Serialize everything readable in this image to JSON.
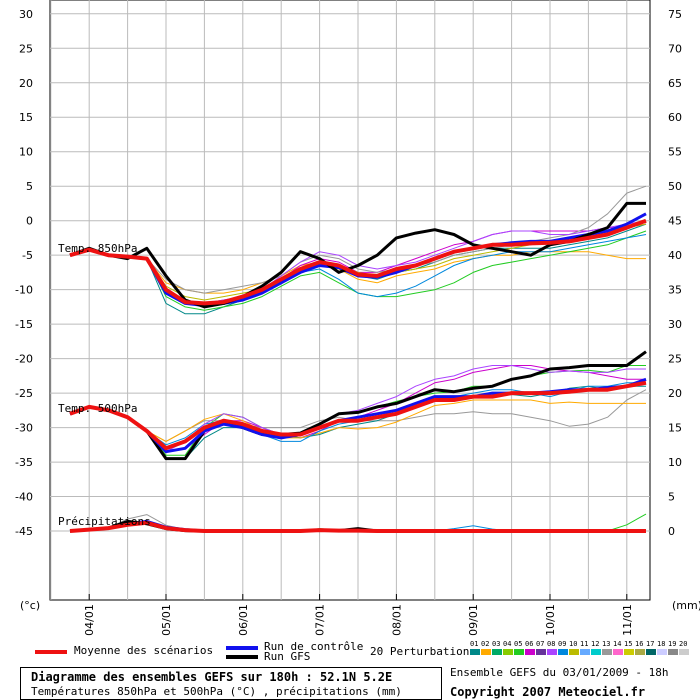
{
  "chart_data": {
    "type": "line",
    "left_axis": {
      "unit": "(°c)",
      "ticks": [
        30,
        25,
        20,
        15,
        10,
        5,
        0,
        -5,
        -10,
        -15,
        -20,
        -25,
        -30,
        -35,
        -40,
        -45
      ],
      "range": [
        -55,
        32
      ]
    },
    "right_axis": {
      "unit": "(mm)",
      "ticks": [
        75,
        70,
        65,
        60,
        55,
        50,
        45,
        40,
        35,
        30,
        25,
        20,
        15,
        10,
        5,
        0
      ]
    },
    "x_tick_labels": [
      "04/01",
      "05/01",
      "06/01",
      "07/01",
      "08/01",
      "09/01",
      "10/01",
      "11/01"
    ],
    "grid": true,
    "annotations": [
      "Temp. 850hPa",
      "Temp. 500hPa",
      "Précipitations"
    ],
    "x_hours": [
      0,
      6,
      12,
      18,
      24,
      30,
      36,
      42,
      48,
      54,
      60,
      66,
      72,
      78,
      84,
      90,
      96,
      102,
      108,
      114,
      120,
      126,
      132,
      138,
      144,
      150,
      156,
      162,
      168,
      174,
      180
    ],
    "series_styles": {
      "mean": {
        "color": "#ee1111",
        "width": 4
      },
      "control": {
        "color": "#1111ee",
        "width": 3
      },
      "gfs": {
        "color": "#000000",
        "width": 3
      }
    },
    "t850": {
      "mean": [
        -5,
        -4.2,
        -5,
        -5.2,
        -5.5,
        -10,
        -11.8,
        -12,
        -11.8,
        -11,
        -10,
        -8.5,
        -7,
        -6,
        -6.5,
        -7.8,
        -8,
        -7,
        -6.5,
        -5.5,
        -4.5,
        -4,
        -3.5,
        -3.5,
        -3.3,
        -3.2,
        -3,
        -2.5,
        -2,
        -1,
        0
      ],
      "control": [
        -5,
        -4.2,
        -5,
        -5.2,
        -5.5,
        -10.5,
        -12,
        -12.3,
        -12,
        -11.5,
        -10.5,
        -9,
        -7.5,
        -6.5,
        -6.8,
        -8,
        -8.2,
        -7.5,
        -6.5,
        -5.5,
        -4.5,
        -4,
        -3.5,
        -3.2,
        -3,
        -3,
        -2.5,
        -2,
        -1.5,
        -0.5,
        1
      ],
      "gfs": [
        -5,
        -4,
        -5,
        -5.5,
        -4,
        -8,
        -11.5,
        -12.5,
        -12,
        -11,
        -9.5,
        -7.5,
        -4.5,
        -5.5,
        -7.5,
        -6.5,
        -5,
        -2.5,
        -1.8,
        -1.3,
        -2,
        -3.5,
        -4,
        -4.5,
        -5,
        -3.5,
        -3,
        -2,
        -1,
        2.5,
        2.5
      ],
      "perturbations": [
        {
          "color": "#008888",
          "values": [
            -5,
            -4.2,
            -5,
            -5,
            -5.5,
            -12,
            -13.5,
            -13.5,
            -12.5,
            -11.5,
            -10.5,
            -9,
            -7,
            -6,
            -6.5,
            -8,
            -8.5,
            -7.5,
            -7,
            -6,
            -5,
            -4.5,
            -4,
            -4,
            -4,
            -4,
            -3.5,
            -3,
            -2.5,
            -1.5,
            -0.5
          ]
        },
        {
          "color": "#ffaa00",
          "values": [
            -5,
            -4.2,
            -5,
            -5.3,
            -5.5,
            -9,
            -10,
            -10.5,
            -10.5,
            -10,
            -9,
            -8,
            -6.5,
            -6,
            -7,
            -8.5,
            -9,
            -8,
            -7.5,
            -7,
            -6,
            -5.5,
            -5,
            -5,
            -4.5,
            -4.5,
            -4.5,
            -4.5,
            -5,
            -5.5,
            -5.5
          ]
        },
        {
          "color": "#22cc22",
          "values": [
            -5,
            -4.2,
            -5,
            -5.2,
            -5.5,
            -11,
            -12.5,
            -13,
            -12.5,
            -12,
            -11,
            -9.5,
            -8,
            -7.5,
            -9,
            -10.5,
            -11,
            -11,
            -10.5,
            -10,
            -9,
            -7.5,
            -6.5,
            -6,
            -5.5,
            -5,
            -4.5,
            -4,
            -3.5,
            -2.5,
            -1.5
          ]
        },
        {
          "color": "#cc00cc",
          "values": [
            -5,
            -4.2,
            -5,
            -5.2,
            -5.5,
            -10,
            -11.5,
            -12,
            -11.5,
            -11,
            -10,
            -8.5,
            -6.5,
            -5.5,
            -6,
            -7.5,
            -7.5,
            -6.5,
            -5.5,
            -4.5,
            -3.5,
            -3,
            -2,
            -1.5,
            -1.5,
            -1.5,
            -1.5,
            -1.5,
            -1,
            -1,
            -0.5
          ]
        },
        {
          "color": "#999999",
          "values": [
            -5,
            -4.2,
            -5,
            -5.2,
            -5.5,
            -8.5,
            -10,
            -10.5,
            -10,
            -9.5,
            -9,
            -8,
            -6,
            -5,
            -5.5,
            -7,
            -7.5,
            -7,
            -6.5,
            -6,
            -5,
            -4.5,
            -4,
            -3.5,
            -3,
            -2.5,
            -2,
            -1,
            1,
            4,
            5
          ]
        },
        {
          "color": "#0088dd",
          "values": [
            -5,
            -4.2,
            -5,
            -5.2,
            -5.5,
            -10.5,
            -12,
            -12.5,
            -12,
            -11.5,
            -10.5,
            -9,
            -7.5,
            -7,
            -8.5,
            -10.5,
            -11,
            -10.5,
            -9.5,
            -8,
            -6.5,
            -5.5,
            -5,
            -4.5,
            -4.5,
            -4.5,
            -4,
            -3.5,
            -3,
            -2.5,
            -2
          ]
        },
        {
          "color": "#bbbb00",
          "values": [
            -5,
            -4.2,
            -5,
            -5.2,
            -5.5,
            -9.5,
            -11,
            -11.5,
            -11,
            -10.5,
            -10,
            -9,
            -7.5,
            -6.5,
            -6.5,
            -7.5,
            -8,
            -7.5,
            -7,
            -6.5,
            -5.5,
            -5,
            -4.5,
            -4,
            -3.5,
            -3,
            -2.5,
            -2,
            -1.5,
            -1,
            -0.5
          ]
        },
        {
          "color": "#aa44ff",
          "values": [
            -5,
            -4.2,
            -5,
            -5.2,
            -5.5,
            -10,
            -11.5,
            -12,
            -11.5,
            -11,
            -10,
            -8,
            -6,
            -4.5,
            -5,
            -6.5,
            -7,
            -6.5,
            -6,
            -5,
            -4,
            -3,
            -2,
            -1.5,
            -1.5,
            -2,
            -2,
            -1.5,
            -1,
            -0.5,
            0
          ]
        }
      ]
    },
    "t500": {
      "mean": [
        -28,
        -27,
        -27.5,
        -28.5,
        -30.5,
        -33,
        -32,
        -30,
        -29,
        -29.5,
        -30.5,
        -31,
        -31,
        -30,
        -29,
        -29,
        -28.5,
        -28,
        -27,
        -26,
        -26,
        -25.5,
        -25.5,
        -25,
        -25,
        -25,
        -24.8,
        -24.5,
        -24.5,
        -24,
        -23.5
      ],
      "control": [
        -28,
        -27,
        -27.5,
        -28.5,
        -30.5,
        -33.5,
        -33,
        -30.5,
        -29.5,
        -30,
        -31,
        -31.5,
        -31,
        -30,
        -29,
        -28.5,
        -28,
        -27.5,
        -26.5,
        -25.5,
        -25.5,
        -25.5,
        -25,
        -25,
        -25,
        -24.8,
        -24.5,
        -24.5,
        -24.2,
        -24,
        -23
      ]
    },
    "precip": {
      "mean": [
        0,
        0.3,
        0.6,
        1.3,
        1.7,
        0.6,
        0.2,
        0,
        0,
        0,
        0,
        0,
        0,
        0.2,
        0.1,
        0.1,
        0,
        0,
        0,
        0,
        0,
        0,
        0,
        0,
        0,
        0,
        0,
        0,
        0,
        0,
        0
      ],
      "control": [
        0,
        0.3,
        0.6,
        1.5,
        2.0,
        0.8,
        0.3,
        0,
        0,
        0,
        0,
        0,
        0,
        0.2,
        0.1,
        0,
        0,
        0,
        0,
        0,
        0,
        0,
        0,
        0,
        0,
        0,
        0,
        0,
        0,
        0,
        0
      ],
      "gfs": [
        0,
        0.3,
        0.6,
        2.0,
        1.5,
        0.5,
        0.1,
        0,
        0,
        0,
        0,
        0,
        0,
        0.2,
        0.1,
        0.5,
        0,
        0,
        0,
        0,
        0,
        0,
        0,
        0,
        0,
        0,
        0,
        0,
        0,
        0,
        0
      ],
      "perturbations": [
        {
          "color": "#999999",
          "values": [
            0,
            0.3,
            0.6,
            2.5,
            3.4,
            1.2,
            0.3,
            0,
            0,
            0,
            0,
            0,
            0,
            0.3,
            0.2,
            0,
            0,
            0,
            0,
            0,
            0,
            0,
            0,
            0,
            0,
            0,
            0,
            0,
            0,
            0,
            0
          ]
        },
        {
          "color": "#22cc22",
          "values": [
            0,
            0.3,
            0.6,
            1.4,
            2.1,
            0.7,
            0.3,
            0,
            0,
            0,
            0,
            0,
            0,
            0.5,
            0.2,
            0.1,
            0,
            0,
            0,
            0,
            0,
            0,
            0,
            0,
            0,
            0,
            0,
            0,
            0,
            1.3,
            3.5
          ]
        },
        {
          "color": "#0088dd",
          "values": [
            0,
            0.3,
            0.6,
            1.2,
            1.8,
            0.6,
            0.2,
            0,
            0,
            0,
            0,
            0,
            0,
            0,
            0,
            0,
            0,
            0,
            0,
            0,
            0.5,
            1.1,
            0.4,
            0,
            0,
            0,
            0,
            0,
            0,
            0,
            0
          ]
        }
      ]
    },
    "legend": {
      "mean_label": "Moyenne des scénarios",
      "control_label": "Run de contrôle",
      "gfs_label": "Run GFS",
      "perturbations_label": "20 Perturbations",
      "perturbation_numbers": [
        "01",
        "02",
        "03",
        "04",
        "05",
        "06",
        "07",
        "08",
        "09",
        "10",
        "11",
        "12",
        "13",
        "14",
        "15",
        "16",
        "17",
        "18",
        "19",
        "20"
      ],
      "perturbation_colors": [
        "#008888",
        "#ffaa00",
        "#00aa66",
        "#88cc00",
        "#22cc22",
        "#cc00cc",
        "#663399",
        "#aa44ff",
        "#0088dd",
        "#bbbb00",
        "#66aaff",
        "#00cccc",
        "#999999",
        "#ff66cc",
        "#cccc00",
        "#aaaa44",
        "#006666",
        "#ccccff",
        "#888888",
        "#cccccc"
      ]
    }
  },
  "footer": {
    "title_line1": "Diagramme des ensembles GEFS sur 180h : 52.1N 5.2E",
    "title_line2": "Températures 850hPa et 500hPa (°C) , précipitations (mm)",
    "run_info": "Ensemble GEFS du 03/01/2009 - 18h",
    "copyright": "Copyright 2007 Meteociel.fr"
  }
}
